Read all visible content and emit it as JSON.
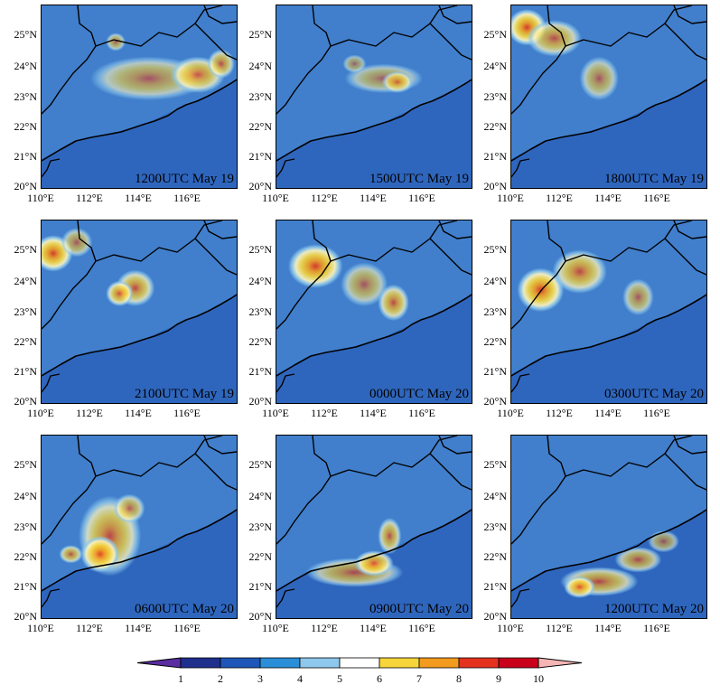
{
  "panels": [
    {
      "label": "1200UTC May 19",
      "blobs": [
        [
          0.55,
          0.4,
          0.3,
          0.12,
          0.6
        ],
        [
          0.8,
          0.38,
          0.14,
          0.1,
          0.75
        ],
        [
          0.92,
          0.32,
          0.07,
          0.08,
          0.7
        ],
        [
          0.38,
          0.2,
          0.05,
          0.05,
          0.6
        ]
      ]
    },
    {
      "label": "1500UTC May 19",
      "blobs": [
        [
          0.55,
          0.4,
          0.2,
          0.08,
          0.55
        ],
        [
          0.62,
          0.42,
          0.08,
          0.06,
          0.65
        ],
        [
          0.4,
          0.32,
          0.06,
          0.05,
          0.5
        ]
      ]
    },
    {
      "label": "1800UTC May 19",
      "blobs": [
        [
          0.08,
          0.12,
          0.1,
          0.1,
          0.9
        ],
        [
          0.22,
          0.18,
          0.14,
          0.1,
          0.7
        ],
        [
          0.45,
          0.4,
          0.1,
          0.12,
          0.6
        ]
      ]
    },
    {
      "label": "2100UTC May 19",
      "blobs": [
        [
          0.06,
          0.18,
          0.1,
          0.1,
          0.9
        ],
        [
          0.18,
          0.12,
          0.08,
          0.08,
          0.6
        ],
        [
          0.48,
          0.37,
          0.1,
          0.1,
          0.75
        ],
        [
          0.4,
          0.4,
          0.07,
          0.07,
          0.8
        ]
      ]
    },
    {
      "label": "0000UTC May 20",
      "blobs": [
        [
          0.2,
          0.25,
          0.14,
          0.12,
          0.9
        ],
        [
          0.45,
          0.35,
          0.12,
          0.12,
          0.6
        ],
        [
          0.6,
          0.45,
          0.08,
          0.1,
          0.75
        ]
      ]
    },
    {
      "label": "0300UTC May 20",
      "blobs": [
        [
          0.15,
          0.38,
          0.12,
          0.12,
          0.9
        ],
        [
          0.35,
          0.28,
          0.14,
          0.12,
          0.75
        ],
        [
          0.65,
          0.42,
          0.08,
          0.1,
          0.6
        ]
      ]
    },
    {
      "label": "0600UTC May 20",
      "blobs": [
        [
          0.35,
          0.55,
          0.16,
          0.22,
          0.75
        ],
        [
          0.3,
          0.65,
          0.1,
          0.1,
          0.85
        ],
        [
          0.15,
          0.65,
          0.06,
          0.05,
          0.7
        ],
        [
          0.45,
          0.4,
          0.08,
          0.08,
          0.65
        ]
      ]
    },
    {
      "label": "0900UTC May 20",
      "blobs": [
        [
          0.4,
          0.75,
          0.25,
          0.08,
          0.65
        ],
        [
          0.5,
          0.7,
          0.1,
          0.07,
          0.8
        ],
        [
          0.58,
          0.55,
          0.06,
          0.1,
          0.7
        ]
      ]
    },
    {
      "label": "1200UTC May 20",
      "blobs": [
        [
          0.45,
          0.8,
          0.2,
          0.08,
          0.7
        ],
        [
          0.35,
          0.83,
          0.08,
          0.06,
          0.8
        ],
        [
          0.65,
          0.68,
          0.12,
          0.07,
          0.65
        ],
        [
          0.78,
          0.58,
          0.08,
          0.06,
          0.55
        ]
      ]
    }
  ],
  "x_ticks": [
    "110°E",
    "112°E",
    "114°E",
    "116°E"
  ],
  "y_ticks": [
    "25°N",
    "24°N",
    "23°N",
    "22°N",
    "21°N",
    "20°N"
  ],
  "colorbar": {
    "labels": [
      "1",
      "2",
      "3",
      "4",
      "5",
      "6",
      "7",
      "8",
      "9",
      "10"
    ],
    "colors": [
      "#5a2da0",
      "#1e2f8c",
      "#1f57b8",
      "#2a8fd8",
      "#8ec8ec",
      "#ffffff",
      "#f7d63b",
      "#f29b1e",
      "#e4321e",
      "#c8001a",
      "#f5b5b5"
    ]
  }
}
